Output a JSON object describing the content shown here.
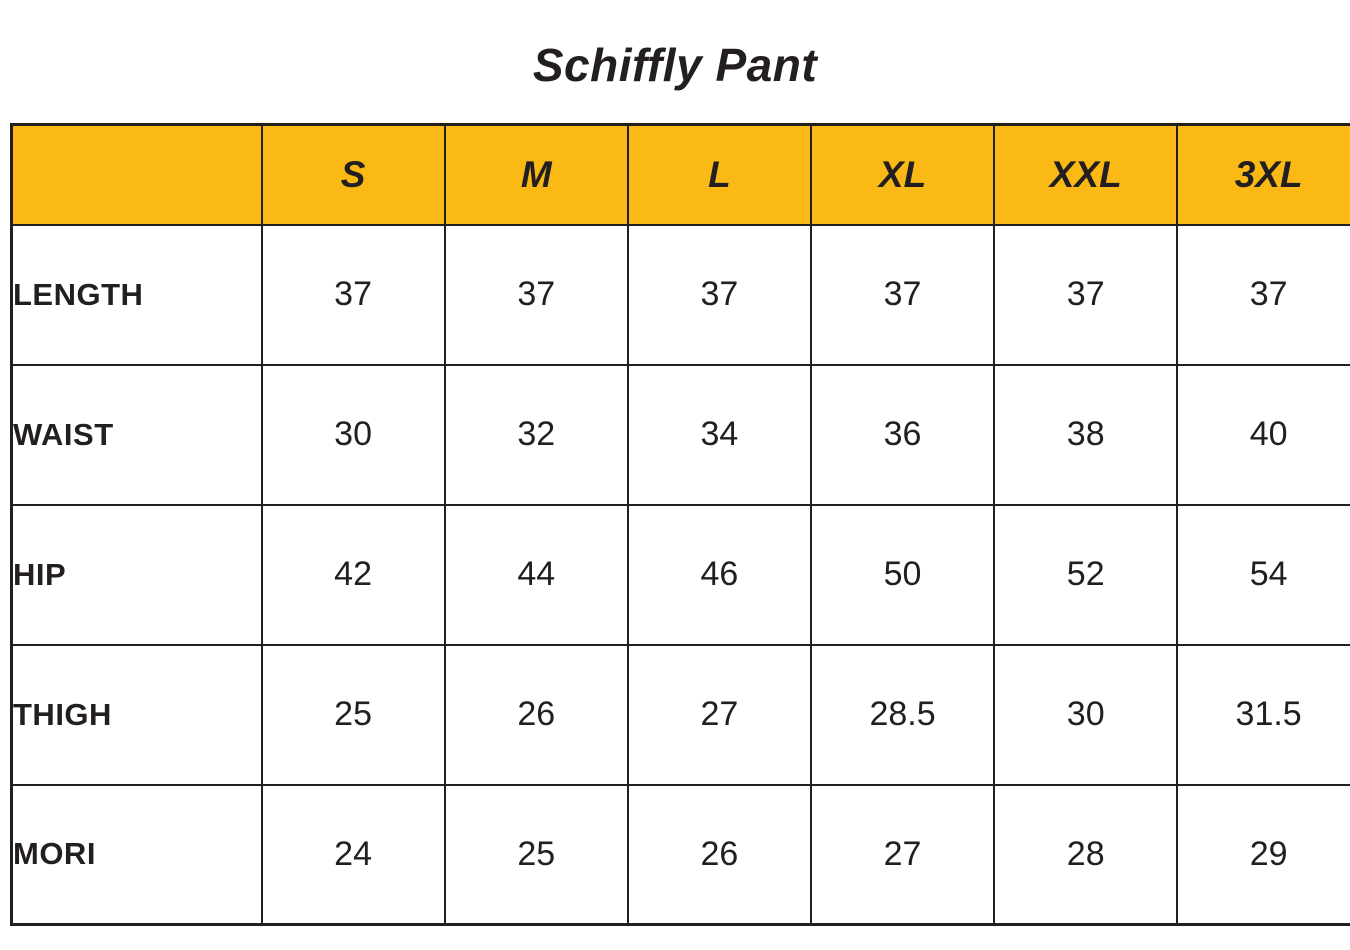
{
  "title": "Schiffly Pant",
  "colors": {
    "header_background": "#FBB915",
    "border": "#231F20",
    "text": "#231F20",
    "page_background": "#FFFFFF"
  },
  "table": {
    "columns": [
      "",
      "S",
      "M",
      "L",
      "XL",
      "XXL",
      "3XL"
    ],
    "rows": [
      {
        "label": "LENGTH",
        "values": [
          "37",
          "37",
          "37",
          "37",
          "37",
          "37"
        ]
      },
      {
        "label": "WAIST",
        "values": [
          "30",
          "32",
          "34",
          "36",
          "38",
          "40"
        ]
      },
      {
        "label": "HIP",
        "values": [
          "42",
          "44",
          "46",
          "50",
          "52",
          "54"
        ]
      },
      {
        "label": "THIGH",
        "values": [
          "25",
          "26",
          "27",
          "28.5",
          "30",
          "31.5"
        ]
      },
      {
        "label": "MORI",
        "values": [
          "24",
          "25",
          "26",
          "27",
          "28",
          "29"
        ]
      }
    ]
  },
  "chart_data": {
    "type": "table",
    "title": "Schiffly Pant",
    "columns": [
      "S",
      "M",
      "L",
      "XL",
      "XXL",
      "3XL"
    ],
    "rows": [
      {
        "label": "LENGTH",
        "values": [
          37,
          37,
          37,
          37,
          37,
          37
        ]
      },
      {
        "label": "WAIST",
        "values": [
          30,
          32,
          34,
          36,
          38,
          40
        ]
      },
      {
        "label": "HIP",
        "values": [
          42,
          44,
          46,
          50,
          52,
          54
        ]
      },
      {
        "label": "THIGH",
        "values": [
          25,
          26,
          27,
          28.5,
          30,
          31.5
        ]
      },
      {
        "label": "MORI",
        "values": [
          24,
          25,
          26,
          27,
          28,
          29
        ]
      }
    ],
    "layout": {
      "header_fill": "#FBB915",
      "grid": true,
      "header_style": "bold-italic"
    }
  }
}
